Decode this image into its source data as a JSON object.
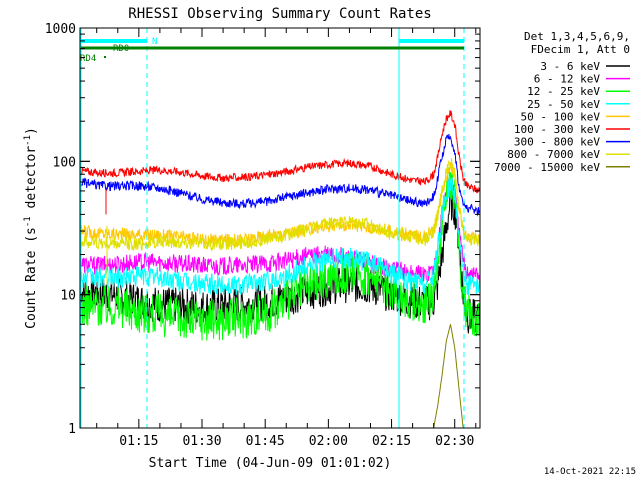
{
  "chart_data": {
    "type": "line",
    "title": "RHESSI Observing Summary Count Rates",
    "xlabel": "Start Time (04-Jun-09 01:01:02)",
    "ylabel_main": "Count Rate (s",
    "ylabel_sup1": "-1",
    "ylabel_mid": " detector",
    "ylabel_sup2": "-1",
    "ylabel_end": ")",
    "yscale": "log",
    "ylim": [
      1,
      1000
    ],
    "xlim_minutes": [
      61.03,
      156.0
    ],
    "yticks": [
      {
        "value": 1,
        "label": "1"
      },
      {
        "value": 10,
        "label": "10"
      },
      {
        "value": 100,
        "label": "100"
      },
      {
        "value": 1000,
        "label": "1000"
      }
    ],
    "xticks": [
      {
        "minute": 75,
        "label": "01:15"
      },
      {
        "minute": 90,
        "label": "01:30"
      },
      {
        "minute": 105,
        "label": "01:45"
      },
      {
        "minute": 120,
        "label": "02:00"
      },
      {
        "minute": 135,
        "label": "02:15"
      },
      {
        "minute": 150,
        "label": "02:30"
      }
    ],
    "legend_header": [
      "Det 1,3,4,5,6,9,",
      "FDecim 1, Att 0"
    ],
    "series": [
      {
        "name": "3 - 6 keV",
        "color": "#000000",
        "values": [
          [
            61,
            10.5
          ],
          [
            65,
            10.3
          ],
          [
            70,
            9.8
          ],
          [
            75,
            9.0
          ],
          [
            80,
            8.4
          ],
          [
            85,
            8.3
          ],
          [
            90,
            8.0
          ],
          [
            95,
            8.3
          ],
          [
            100,
            8.4
          ],
          [
            105,
            8.7
          ],
          [
            110,
            9.5
          ],
          [
            115,
            10.5
          ],
          [
            120,
            11.5
          ],
          [
            125,
            12.0
          ],
          [
            130,
            11.5
          ],
          [
            135,
            10.0
          ],
          [
            140,
            9.0
          ],
          [
            143,
            8.5
          ],
          [
            145,
            9
          ],
          [
            146,
            12
          ],
          [
            147,
            20
          ],
          [
            148,
            32
          ],
          [
            149,
            50
          ],
          [
            150,
            45
          ],
          [
            151,
            25
          ],
          [
            152,
            10
          ],
          [
            153,
            7
          ],
          [
            156,
            6.5
          ]
        ]
      },
      {
        "name": "6 - 12 keV",
        "color": "#ff00ff",
        "values": [
          [
            61,
            17
          ],
          [
            65,
            16.5
          ],
          [
            70,
            17
          ],
          [
            75,
            17.5
          ],
          [
            80,
            17.5
          ],
          [
            85,
            17
          ],
          [
            90,
            16.5
          ],
          [
            95,
            16.3
          ],
          [
            100,
            16.5
          ],
          [
            105,
            17
          ],
          [
            110,
            18
          ],
          [
            115,
            19.5
          ],
          [
            120,
            20
          ],
          [
            125,
            19
          ],
          [
            130,
            17
          ],
          [
            135,
            15.5
          ],
          [
            140,
            14.5
          ],
          [
            143,
            14
          ],
          [
            145,
            16
          ],
          [
            146,
            22
          ],
          [
            147,
            40
          ],
          [
            148,
            60
          ],
          [
            149,
            80
          ],
          [
            150,
            60
          ],
          [
            151,
            30
          ],
          [
            152,
            18
          ],
          [
            153,
            15
          ],
          [
            156,
            14
          ]
        ]
      },
      {
        "name": "12 - 25 keV",
        "color": "#00ff00",
        "values": [
          [
            61,
            8.3
          ],
          [
            65,
            8.3
          ],
          [
            70,
            8.2
          ],
          [
            75,
            7.5
          ],
          [
            80,
            7.0
          ],
          [
            85,
            6.6
          ],
          [
            90,
            6.5
          ],
          [
            95,
            6.5
          ],
          [
            100,
            6.8
          ],
          [
            105,
            7.3
          ],
          [
            110,
            9.0
          ],
          [
            115,
            11.5
          ],
          [
            120,
            13.5
          ],
          [
            125,
            14.5
          ],
          [
            130,
            13.5
          ],
          [
            135,
            11.0
          ],
          [
            140,
            9.0
          ],
          [
            143,
            8.5
          ],
          [
            145,
            10
          ],
          [
            146,
            18
          ],
          [
            147,
            35
          ],
          [
            148,
            55
          ],
          [
            149,
            72
          ],
          [
            150,
            55
          ],
          [
            151,
            25
          ],
          [
            152,
            10
          ],
          [
            153,
            7
          ],
          [
            156,
            7
          ]
        ]
      },
      {
        "name": "25 - 50 keV",
        "color": "#00ffff",
        "values": [
          [
            61,
            13.5
          ],
          [
            65,
            13.3
          ],
          [
            70,
            13.5
          ],
          [
            75,
            13.8
          ],
          [
            80,
            13.5
          ],
          [
            85,
            12.5
          ],
          [
            90,
            12
          ],
          [
            95,
            11.8
          ],
          [
            100,
            12
          ],
          [
            105,
            12.5
          ],
          [
            110,
            14
          ],
          [
            115,
            16.5
          ],
          [
            120,
            18.5
          ],
          [
            125,
            19
          ],
          [
            130,
            17.5
          ],
          [
            135,
            14.5
          ],
          [
            140,
            12.5
          ],
          [
            143,
            12
          ],
          [
            145,
            14
          ],
          [
            146,
            22
          ],
          [
            147,
            40
          ],
          [
            148,
            60
          ],
          [
            149,
            68
          ],
          [
            150,
            55
          ],
          [
            151,
            30
          ],
          [
            152,
            15
          ],
          [
            153,
            12
          ],
          [
            156,
            11
          ]
        ]
      },
      {
        "name": "50 - 100 keV",
        "color": "#ffc800",
        "values": [
          [
            61,
            30
          ],
          [
            65,
            29
          ],
          [
            70,
            28.5
          ],
          [
            75,
            28
          ],
          [
            80,
            28
          ],
          [
            85,
            27
          ],
          [
            90,
            26
          ],
          [
            95,
            25.5
          ],
          [
            100,
            26
          ],
          [
            105,
            27.5
          ],
          [
            110,
            29
          ],
          [
            115,
            31
          ],
          [
            120,
            33
          ],
          [
            125,
            33.5
          ],
          [
            130,
            32
          ],
          [
            135,
            30
          ],
          [
            140,
            28
          ],
          [
            143,
            27
          ],
          [
            145,
            30
          ],
          [
            146,
            40
          ],
          [
            147,
            60
          ],
          [
            148,
            80
          ],
          [
            149,
            95
          ],
          [
            150,
            80
          ],
          [
            151,
            45
          ],
          [
            152,
            30
          ],
          [
            153,
            27
          ],
          [
            156,
            26
          ]
        ]
      },
      {
        "name": "100 - 300 keV",
        "color": "#ff0000",
        "values": [
          [
            61,
            85
          ],
          [
            65,
            82
          ],
          [
            70,
            82
          ],
          [
            75,
            84
          ],
          [
            80,
            86
          ],
          [
            85,
            83
          ],
          [
            90,
            78
          ],
          [
            95,
            75
          ],
          [
            100,
            76
          ],
          [
            105,
            79
          ],
          [
            110,
            84
          ],
          [
            115,
            90
          ],
          [
            120,
            95
          ],
          [
            125,
            97
          ],
          [
            130,
            92
          ],
          [
            135,
            80
          ],
          [
            140,
            72
          ],
          [
            143,
            70
          ],
          [
            145,
            80
          ],
          [
            146,
            110
          ],
          [
            147,
            160
          ],
          [
            148,
            210
          ],
          [
            149,
            230
          ],
          [
            150,
            190
          ],
          [
            151,
            110
          ],
          [
            152,
            75
          ],
          [
            153,
            65
          ],
          [
            156,
            60
          ]
        ]
      },
      {
        "name": "300 - 800 keV",
        "color": "#0000ff",
        "values": [
          [
            61,
            70
          ],
          [
            65,
            66
          ],
          [
            70,
            65
          ],
          [
            75,
            66
          ],
          [
            80,
            63
          ],
          [
            85,
            58
          ],
          [
            90,
            52
          ],
          [
            95,
            49
          ],
          [
            100,
            48
          ],
          [
            105,
            50
          ],
          [
            110,
            54
          ],
          [
            115,
            58
          ],
          [
            120,
            62
          ],
          [
            125,
            63
          ],
          [
            130,
            61
          ],
          [
            135,
            55
          ],
          [
            140,
            50
          ],
          [
            143,
            48
          ],
          [
            145,
            55
          ],
          [
            146,
            75
          ],
          [
            147,
            110
          ],
          [
            148,
            145
          ],
          [
            149,
            150
          ],
          [
            150,
            120
          ],
          [
            151,
            65
          ],
          [
            152,
            48
          ],
          [
            153,
            45
          ],
          [
            156,
            42
          ]
        ]
      },
      {
        "name": "800 - 7000 keV",
        "color": "#e0e000",
        "values": [
          [
            61,
            25
          ],
          [
            65,
            24.5
          ],
          [
            70,
            24
          ],
          [
            75,
            24
          ],
          [
            80,
            25
          ],
          [
            85,
            25
          ],
          [
            90,
            24.5
          ],
          [
            95,
            24
          ],
          [
            100,
            24.5
          ],
          [
            105,
            26
          ],
          [
            110,
            28
          ],
          [
            115,
            31
          ],
          [
            120,
            34
          ],
          [
            125,
            35
          ],
          [
            130,
            33
          ],
          [
            135,
            29
          ],
          [
            140,
            27
          ],
          [
            143,
            26
          ],
          [
            145,
            30
          ],
          [
            146,
            40
          ],
          [
            147,
            60
          ],
          [
            148,
            85
          ],
          [
            149,
            100
          ],
          [
            150,
            85
          ],
          [
            151,
            45
          ],
          [
            152,
            30
          ],
          [
            153,
            27
          ],
          [
            156,
            25
          ]
        ]
      },
      {
        "name": "7000 - 15000 keV",
        "color": "#808000",
        "values": [
          [
            145,
            1
          ],
          [
            146,
            1.5
          ],
          [
            147,
            2.5
          ],
          [
            148,
            4.5
          ],
          [
            149,
            6
          ],
          [
            150,
            4
          ],
          [
            151,
            2
          ],
          [
            152,
            1
          ]
        ]
      }
    ],
    "flags": [
      {
        "name": "N",
        "color": "#00ffff"
      },
      {
        "name": "RD0",
        "color": "#008000"
      },
      {
        "name": "RD4",
        "color": "#008000"
      }
    ]
  },
  "footer": {
    "timestamp": "14-Oct-2021 22:15"
  },
  "colors": {
    "axis": "#000000",
    "cyan_flag": "#00ffff",
    "green_flag": "#008000"
  }
}
